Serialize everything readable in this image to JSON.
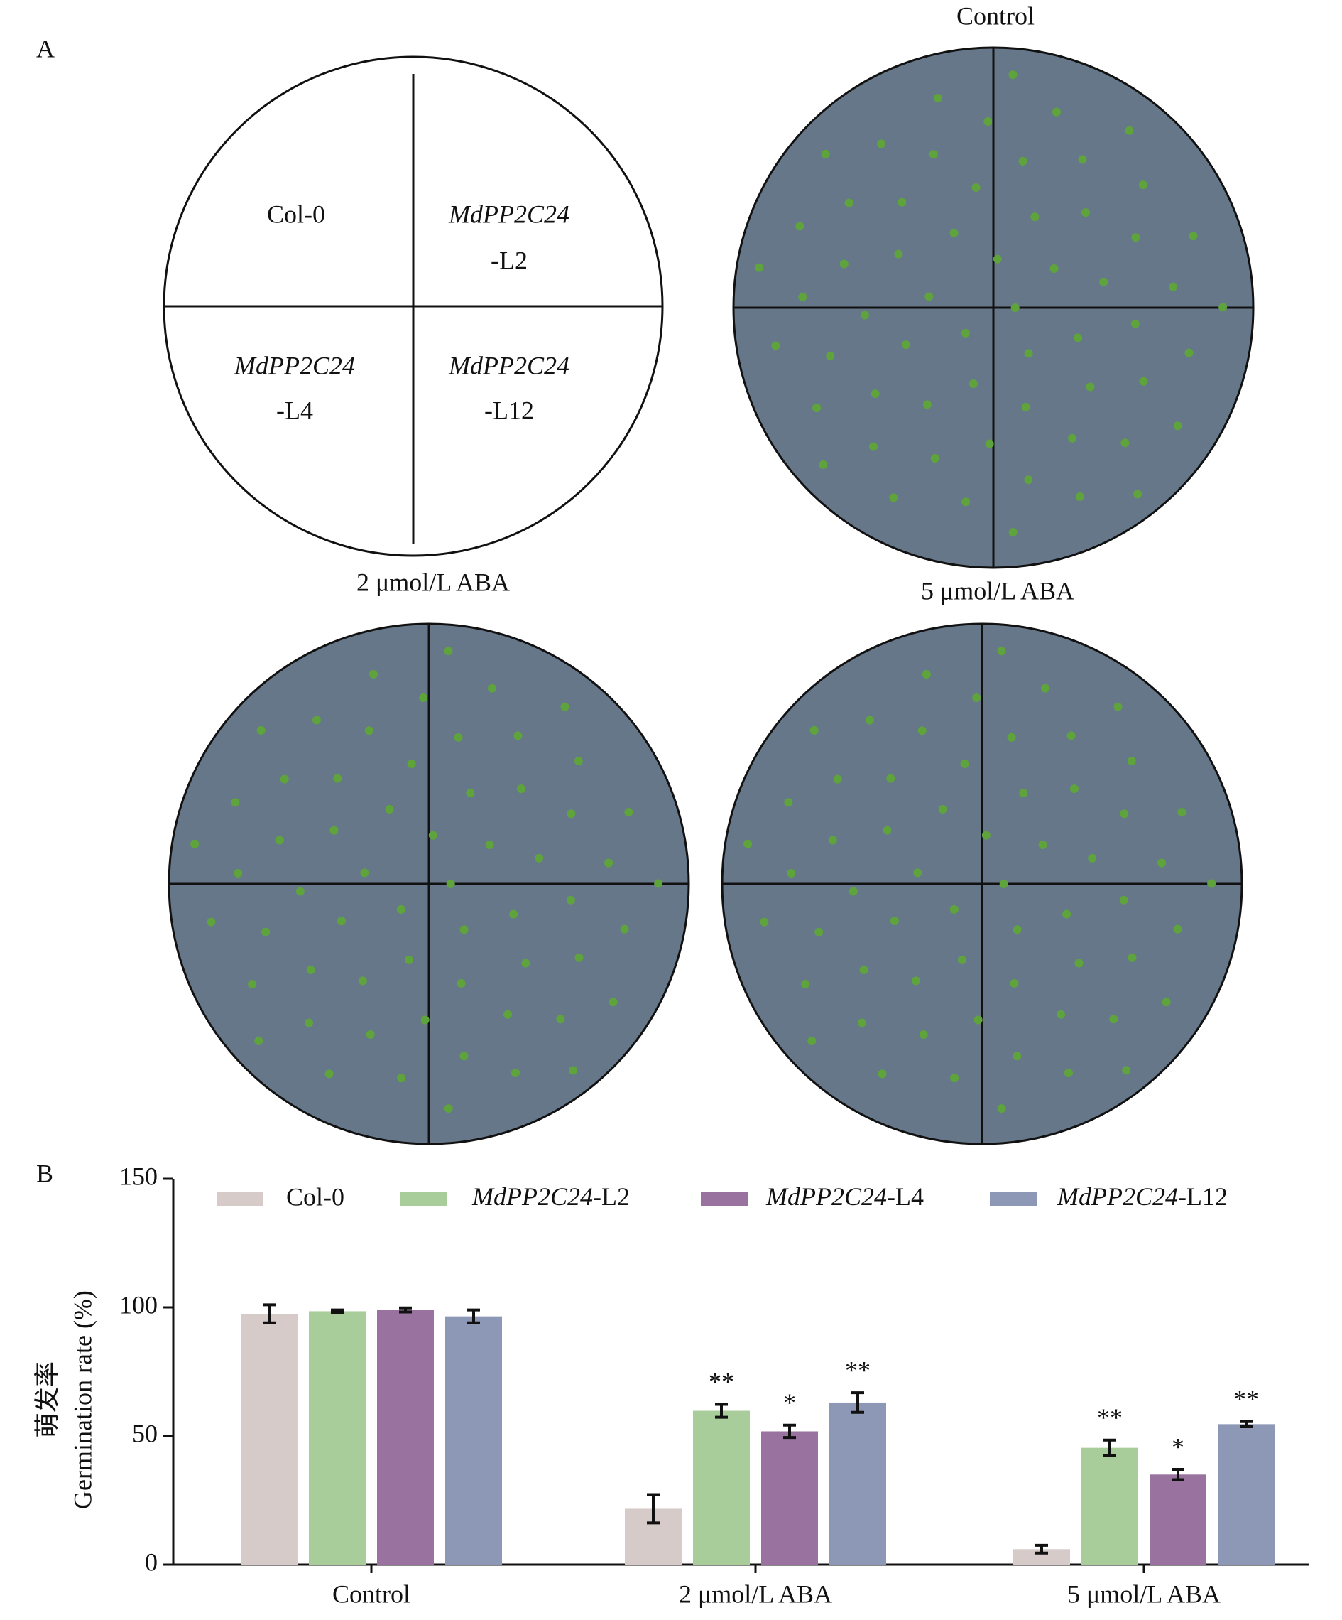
{
  "panel_a": {
    "label": "A",
    "diagram": {
      "quadrants": [
        [
          "Col-0"
        ],
        [
          "MdPP2C24",
          "-L2"
        ],
        [
          "MdPP2C24",
          "-L4"
        ],
        [
          "MdPP2C24",
          "-L12"
        ]
      ]
    },
    "photos": [
      {
        "title": "Control"
      },
      {
        "title": "2 μmol/L ABA"
      },
      {
        "title": "5 μmol/L ABA"
      }
    ]
  },
  "panel_b": {
    "label": "B"
  },
  "chart_data": {
    "type": "bar",
    "y_label": [
      "萌发率",
      "Germination rate (%)"
    ],
    "categories": [
      "Control",
      "2 μmol/L ABA",
      "5 μmol/L ABA"
    ],
    "series": [
      {
        "name": "Col-0",
        "color": "#d6cbc9",
        "values": [
          97.5,
          21.7,
          6
        ],
        "errors": [
          3.5,
          5.5,
          1.5
        ],
        "significance": [
          null,
          null,
          null
        ]
      },
      {
        "name": "MdPP2C24-L2",
        "color": "#a9cd9a",
        "values": [
          98.5,
          59.8,
          45.4
        ],
        "errors": [
          0.5,
          2.5,
          3
        ],
        "significance": [
          null,
          "**",
          "**"
        ]
      },
      {
        "name": "MdPP2C24-L4",
        "color": "#9a72a0",
        "values": [
          99,
          51.8,
          35
        ],
        "errors": [
          0.8,
          2.4,
          2
        ],
        "significance": [
          null,
          "*",
          "*"
        ]
      },
      {
        "name": "MdPP2C24-L12",
        "color": "#8c98b5",
        "values": [
          96.5,
          63,
          54.6
        ],
        "errors": [
          2.5,
          3.8,
          1
        ],
        "significance": [
          null,
          "**",
          "**"
        ]
      }
    ],
    "ylim": [
      0,
      150
    ],
    "yticks": [
      0,
      50,
      100,
      150
    ]
  }
}
